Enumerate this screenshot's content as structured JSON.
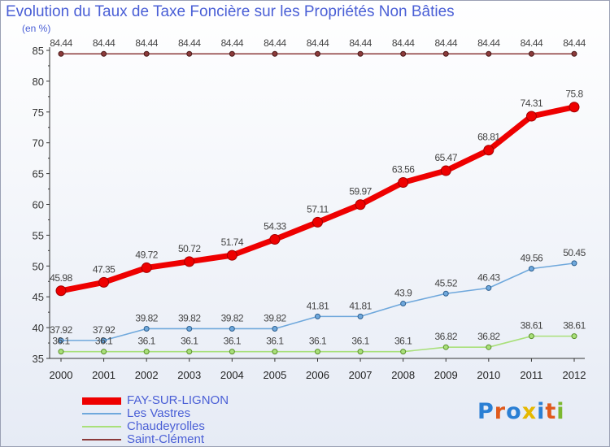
{
  "title": "Evolution du Taux de Taxe Foncière sur les Propriétés Non Bâties",
  "unit_label": "(en %)",
  "brand": {
    "text": "Proxiti",
    "letter_colors": [
      "#2a7fd4",
      "#e05a1c",
      "#2a7fd4",
      "#e6b800",
      "#2a7fd4",
      "#e05a1c",
      "#7cb82f"
    ]
  },
  "chart_data": {
    "type": "line",
    "x": [
      "2000",
      "2001",
      "2002",
      "2003",
      "2004",
      "2005",
      "2006",
      "2007",
      "2008",
      "2009",
      "2010",
      "2011",
      "2012"
    ],
    "ylim": [
      35,
      85
    ],
    "yticks": [
      35,
      40,
      45,
      50,
      55,
      60,
      65,
      70,
      75,
      80,
      85
    ],
    "grid": false,
    "legend_position": "bottom-left",
    "series": [
      {
        "name": "FAY-SUR-LIGNON",
        "color": "#ee0000",
        "values": [
          45.98,
          47.35,
          49.72,
          50.72,
          51.74,
          54.33,
          57.11,
          59.97,
          63.56,
          65.47,
          68.81,
          74.31,
          75.8
        ],
        "labels": [
          "45.98",
          "47.35",
          "49.72",
          "50.72",
          "51.74",
          "54.33",
          "57.11",
          "59.97",
          "63.56",
          "65.47",
          "68.81",
          "74.31",
          "75.8"
        ]
      },
      {
        "name": "Les Vastres",
        "color": "#6fa8dc",
        "values": [
          37.92,
          37.92,
          39.82,
          39.82,
          39.82,
          39.82,
          41.81,
          41.81,
          43.9,
          45.52,
          46.43,
          49.56,
          50.45
        ],
        "labels": [
          "37.92",
          "37.92",
          "39.82",
          "39.82",
          "39.82",
          "39.82",
          "41.81",
          "41.81",
          "43.9",
          "45.52",
          "46.43",
          "49.56",
          "50.45"
        ]
      },
      {
        "name": "Chaudeyrolles",
        "color": "#a9e07a",
        "values": [
          36.1,
          36.1,
          36.1,
          36.1,
          36.1,
          36.1,
          36.1,
          36.1,
          36.1,
          36.82,
          36.82,
          38.61,
          38.61
        ],
        "labels": [
          "36.1",
          "36.1",
          "36.1",
          "36.1",
          "36.1",
          "36.1",
          "36.1",
          "36.1",
          "36.1",
          "36.82",
          "36.82",
          "38.61",
          "38.61"
        ]
      },
      {
        "name": "Saint-Clément",
        "color": "#8b3a3a",
        "values": [
          84.44,
          84.44,
          84.44,
          84.44,
          84.44,
          84.44,
          84.44,
          84.44,
          84.44,
          84.44,
          84.44,
          84.44,
          84.44
        ],
        "labels": [
          "84.44",
          "84.44",
          "84.44",
          "84.44",
          "84.44",
          "84.44",
          "84.44",
          "84.44",
          "84.44",
          "84.44",
          "84.44",
          "84.44",
          "84.44"
        ]
      }
    ]
  }
}
